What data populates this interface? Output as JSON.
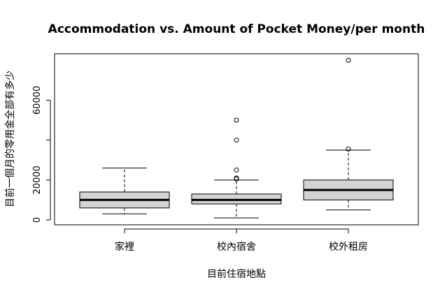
{
  "chart_data": {
    "type": "boxplot",
    "title": "Accommodation vs. Amount of Pocket Money/per month",
    "xlabel": "目前住宿地點",
    "ylabel": "目前一個月的零用金全部有多少",
    "ylim": [
      -2000,
      82000
    ],
    "yticks": [
      0,
      20000,
      40000,
      60000
    ],
    "ytick_labels": [
      "0",
      "20000",
      "",
      "60000"
    ],
    "grid": false,
    "box_fill": "#d3d3d3",
    "categories": [
      "家裡",
      "校內宿舍",
      "校外租房"
    ],
    "boxes": [
      {
        "category": "家裡",
        "whisker_low": 3000,
        "q1": 6000,
        "median": 10000,
        "q3": 14000,
        "whisker_high": 26000,
        "outliers": []
      },
      {
        "category": "校內宿舍",
        "whisker_low": 1000,
        "q1": 8000,
        "median": 10000,
        "q3": 13000,
        "whisker_high": 20000,
        "outliers": [
          20500,
          21000,
          25000,
          40000,
          50000
        ]
      },
      {
        "category": "校外租房",
        "whisker_low": 5000,
        "q1": 10000,
        "median": 15000,
        "q3": 20000,
        "whisker_high": 35000,
        "outliers": [
          35500,
          80000
        ]
      }
    ]
  }
}
